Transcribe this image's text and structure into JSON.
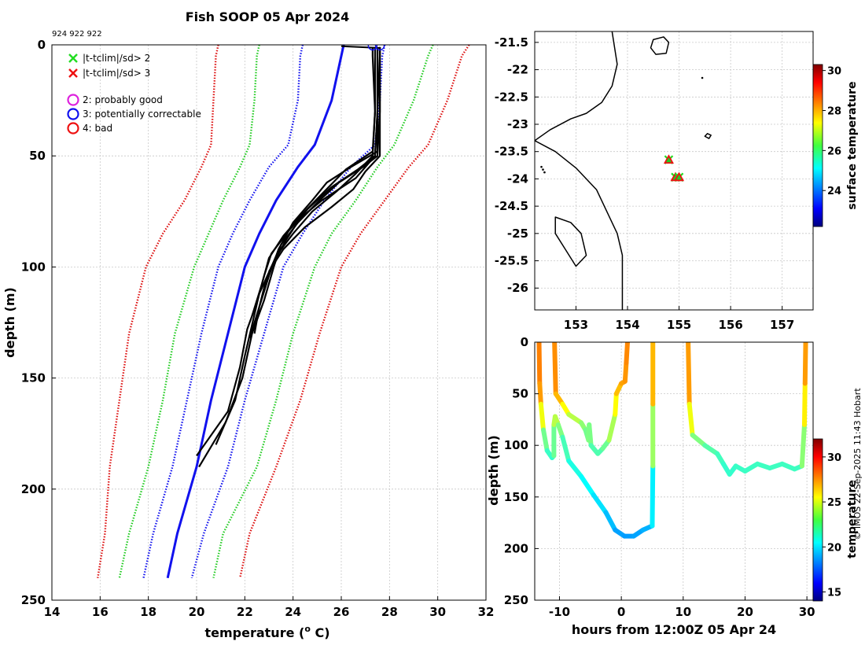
{
  "chart_data": [
    {
      "type": "line",
      "panel": "profiles",
      "title": "Fish SOOP 05 Apr 2024",
      "subtitle": "924 922 922",
      "xlabel": "temperature (",
      "xlabel_sup": "o",
      "xlabel_tail": " C)",
      "ylabel": "depth (m)",
      "xlim": [
        14,
        32
      ],
      "ylim": [
        0,
        250
      ],
      "xticks": [
        14,
        16,
        18,
        20,
        22,
        24,
        26,
        28,
        30,
        32
      ],
      "yticks": [
        0,
        50,
        100,
        150,
        200,
        250
      ],
      "grid": true,
      "legend": [
        {
          "marker": "x",
          "color": "#22dd22",
          "label": "|t-tclim|/sd> 2"
        },
        {
          "marker": "x",
          "color": "#ee1111",
          "label": "|t-tclim|/sd> 3"
        },
        {
          "marker": "o",
          "color": "#dd22dd",
          "label": "2: probably good"
        },
        {
          "marker": "o",
          "color": "#1111ee",
          "label": "3: potentially correctable"
        },
        {
          "marker": "o",
          "color": "#ee1111",
          "label": "4: bad"
        }
      ],
      "depth": [
        0,
        5,
        25,
        45,
        55,
        70,
        85,
        100,
        130,
        160,
        190,
        220,
        240
      ],
      "series": [
        {
          "name": "climatology mean",
          "color": "#1111ee",
          "style": "solid",
          "values": [
            26.1,
            26.0,
            25.6,
            24.9,
            24.2,
            23.3,
            22.6,
            22.0,
            21.3,
            20.6,
            20.0,
            19.2,
            18.8
          ]
        },
        {
          "name": "clim -1sd",
          "color": "#1111ee",
          "style": "dotted",
          "values": [
            24.4,
            24.3,
            24.2,
            23.8,
            23.0,
            22.2,
            21.5,
            20.9,
            20.2,
            19.6,
            19.0,
            18.2,
            17.8
          ]
        },
        {
          "name": "clim +1sd",
          "color": "#1111ee",
          "style": "dotted",
          "values": [
            27.8,
            27.7,
            27.6,
            27.4,
            26.4,
            25.3,
            24.4,
            23.6,
            22.8,
            22.0,
            21.3,
            20.3,
            19.8
          ]
        },
        {
          "name": "clim -2sd",
          "color": "#22cc22",
          "style": "dotted",
          "values": [
            22.6,
            22.5,
            22.4,
            22.2,
            21.8,
            21.1,
            20.5,
            19.9,
            19.1,
            18.6,
            18.0,
            17.2,
            16.8
          ]
        },
        {
          "name": "clim +2sd",
          "color": "#22cc22",
          "style": "dotted",
          "values": [
            29.8,
            29.6,
            29.0,
            28.2,
            27.5,
            26.6,
            25.6,
            24.9,
            24.0,
            23.3,
            22.5,
            21.1,
            20.7
          ]
        },
        {
          "name": "clim -3sd",
          "color": "#dd1111",
          "style": "dotted",
          "values": [
            20.9,
            20.8,
            20.7,
            20.6,
            20.2,
            19.5,
            18.6,
            17.9,
            17.2,
            16.8,
            16.4,
            16.2,
            15.9
          ]
        },
        {
          "name": "clim +3sd",
          "color": "#dd1111",
          "style": "dotted",
          "values": [
            31.3,
            31.0,
            30.4,
            29.6,
            28.8,
            27.8,
            26.8,
            26.0,
            25.1,
            24.3,
            23.3,
            22.2,
            21.8
          ]
        }
      ],
      "observed_profiles": [
        {
          "depth": [
            1,
            5,
            30,
            50,
            55,
            62,
            70,
            80,
            90,
            100,
            115,
            130,
            150,
            170,
            190
          ],
          "values": [
            27.6,
            27.6,
            27.6,
            27.5,
            26.9,
            25.9,
            25.1,
            24.2,
            23.5,
            23.2,
            22.8,
            22.3,
            21.9,
            21.2,
            20.1
          ]
        },
        {
          "depth": [
            1,
            5,
            30,
            50,
            58,
            66,
            75,
            85,
            95,
            105,
            118,
            130
          ],
          "values": [
            27.4,
            27.4,
            27.4,
            27.3,
            26.6,
            25.8,
            24.8,
            24.0,
            23.3,
            22.9,
            22.6,
            22.4
          ]
        },
        {
          "depth": [
            1,
            5,
            30,
            50,
            56,
            64,
            74,
            84,
            94,
            104,
            116,
            128,
            145,
            165,
            185
          ],
          "values": [
            27.5,
            27.5,
            27.5,
            27.4,
            26.7,
            25.6,
            24.6,
            23.8,
            23.1,
            22.8,
            22.5,
            22.1,
            21.8,
            21.3,
            20.0
          ]
        },
        {
          "depth": [
            1,
            5,
            30,
            48,
            55,
            62,
            70,
            80,
            92,
            104,
            118,
            132
          ],
          "values": [
            27.6,
            27.6,
            27.5,
            27.5,
            26.4,
            25.4,
            24.8,
            24.0,
            23.4,
            23.0,
            22.6,
            22.2
          ]
        },
        {
          "depth": [
            1,
            5,
            30,
            48,
            56,
            66,
            76,
            86,
            96,
            108,
            122
          ],
          "values": [
            27.3,
            27.3,
            27.4,
            27.3,
            26.2,
            25.3,
            24.4,
            23.6,
            23.0,
            22.7,
            22.3
          ]
        },
        {
          "depth": [
            1,
            5,
            30,
            50,
            60,
            70,
            78,
            88,
            100,
            112,
            126,
            140,
            160,
            180
          ],
          "values": [
            27.5,
            27.5,
            27.5,
            27.4,
            26.6,
            25.2,
            24.3,
            23.7,
            23.1,
            22.6,
            22.3,
            22.0,
            21.6,
            20.8
          ]
        },
        {
          "depth": [
            1,
            5,
            30,
            50,
            57,
            65,
            73,
            82,
            92,
            102
          ],
          "values": [
            27.6,
            27.6,
            27.6,
            27.6,
            27.0,
            26.5,
            25.6,
            24.5,
            23.6,
            23.0
          ]
        }
      ],
      "qc_markers": [
        {
          "symbol": "o",
          "color": "#1111ee",
          "temp": 27.3,
          "depth": 0
        },
        {
          "symbol": "o",
          "color": "#1111ee",
          "temp": 27.6,
          "depth": 0
        }
      ]
    },
    {
      "type": "scatter",
      "panel": "map",
      "xlim": [
        152.2,
        157.6
      ],
      "ylim": [
        -26.4,
        -21.3
      ],
      "xticks": [
        153,
        154,
        155,
        156,
        157
      ],
      "yticks": [
        -21.5,
        -22,
        -22.5,
        -23,
        -23.5,
        -24,
        -24.5,
        -25,
        -25.5,
        -26
      ],
      "grid": true,
      "colorbar": {
        "label": "surface temperature",
        "range": [
          22.2,
          30.3
        ],
        "ticks": [
          24,
          26,
          28,
          30
        ]
      },
      "points": [
        {
          "lon": 154.8,
          "lat": -23.65
        },
        {
          "lon": 154.93,
          "lat": -23.97
        },
        {
          "lon": 155.0,
          "lat": -23.97
        }
      ],
      "coastline": [
        [
          152.2,
          -23.3
        ],
        [
          152.5,
          -23.1
        ],
        [
          152.9,
          -22.9
        ],
        [
          153.2,
          -22.8
        ],
        [
          153.5,
          -22.6
        ],
        [
          153.7,
          -22.3
        ],
        [
          153.8,
          -21.9
        ],
        [
          153.7,
          -21.3
        ]
      ],
      "coastline2": [
        [
          152.2,
          -23.3
        ],
        [
          152.6,
          -23.5
        ],
        [
          153.0,
          -23.8
        ],
        [
          153.4,
          -24.2
        ],
        [
          153.6,
          -24.6
        ],
        [
          153.8,
          -25.0
        ],
        [
          153.9,
          -25.4
        ],
        [
          153.9,
          -25.8
        ],
        [
          153.9,
          -26.4
        ]
      ],
      "islands": [
        [
          [
            154.45,
            -21.6
          ],
          [
            154.5,
            -21.45
          ],
          [
            154.7,
            -21.4
          ],
          [
            154.8,
            -21.5
          ],
          [
            154.75,
            -21.7
          ],
          [
            154.55,
            -21.72
          ],
          [
            154.45,
            -21.6
          ]
        ],
        [
          [
            155.5,
            -23.22
          ],
          [
            155.55,
            -23.17
          ],
          [
            155.62,
            -23.2
          ],
          [
            155.58,
            -23.26
          ],
          [
            155.5,
            -23.22
          ]
        ],
        [
          [
            152.6,
            -24.7
          ],
          [
            152.9,
            -24.8
          ],
          [
            153.1,
            -25.0
          ],
          [
            153.2,
            -25.4
          ],
          [
            153.0,
            -25.6
          ],
          [
            152.8,
            -25.3
          ],
          [
            152.6,
            -25.0
          ]
        ]
      ]
    },
    {
      "type": "line",
      "panel": "depth_time",
      "xlabel": "hours from 12:00Z 05 Apr 24",
      "ylabel": "depth (m)",
      "xlim": [
        -14,
        31
      ],
      "ylim": [
        0,
        250
      ],
      "xticks": [
        -10,
        0,
        10,
        20,
        30
      ],
      "yticks": [
        0,
        50,
        100,
        150,
        200,
        250
      ],
      "colorbar": {
        "label": "temperature",
        "range": [
          14,
          32
        ],
        "ticks": [
          15,
          20,
          25,
          30
        ]
      },
      "series": [
        {
          "name": "track 1",
          "points": [
            [
              -13.3,
              0,
              27.5
            ],
            [
              -13.2,
              40,
              27.5
            ],
            [
              -13.0,
              60,
              26.5
            ],
            [
              -12.6,
              85,
              23.5
            ],
            [
              -12.0,
              105,
              22.0
            ],
            [
              -11.2,
              112,
              21.5
            ],
            [
              -10.9,
              110,
              21.8
            ],
            [
              -10.9,
              80,
              23.5
            ],
            [
              -10.7,
              72,
              24.5
            ],
            [
              -10.2,
              80,
              23.5
            ],
            [
              -9.5,
              92,
              22.5
            ],
            [
              -8.5,
              115,
              21.5
            ],
            [
              -6.5,
              130,
              21.0
            ],
            [
              -4.5,
              148,
              20.5
            ],
            [
              -2.5,
              165,
              20.0
            ],
            [
              -1,
              182,
              19.2
            ],
            [
              0.5,
              188,
              19.0
            ],
            [
              2,
              188,
              19.0
            ],
            [
              3.5,
              182,
              19.3
            ],
            [
              5,
              178,
              19.5
            ],
            [
              5.1,
              120,
              21.5
            ],
            [
              5.1,
              60,
              25.5
            ],
            [
              5.1,
              0,
              27.5
            ]
          ]
        },
        {
          "name": "track 2",
          "points": [
            [
              -10.8,
              0,
              27.5
            ],
            [
              -10.6,
              50,
              27.0
            ],
            [
              -9.5,
              60,
              26.0
            ],
            [
              -8.5,
              70,
              24.5
            ],
            [
              -6.5,
              78,
              23.5
            ],
            [
              -5.8,
              85,
              23.0
            ],
            [
              -5.3,
              95,
              22.5
            ],
            [
              -5.2,
              80,
              23.5
            ],
            [
              -4.9,
              100,
              22.3
            ],
            [
              -3.8,
              108,
              22.0
            ],
            [
              -3.0,
              103,
              22.3
            ],
            [
              -2.0,
              95,
              23.0
            ],
            [
              -1.0,
              70,
              24.5
            ],
            [
              -0.8,
              50,
              26.0
            ],
            [
              0,
              40,
              26.8
            ],
            [
              0.6,
              38,
              27.0
            ],
            [
              0.8,
              20,
              27.2
            ],
            [
              1.0,
              0,
              27.5
            ]
          ]
        },
        {
          "name": "track 3",
          "points": [
            [
              10.8,
              0,
              27.5
            ],
            [
              11.0,
              60,
              26.5
            ],
            [
              11.5,
              90,
              23.5
            ],
            [
              13.5,
              100,
              22.5
            ],
            [
              15.5,
              108,
              22.0
            ],
            [
              16.5,
              118,
              21.8
            ],
            [
              17.5,
              128,
              21.5
            ],
            [
              18.5,
              120,
              21.8
            ],
            [
              20,
              125,
              21.7
            ],
            [
              22,
              118,
              21.9
            ],
            [
              24,
              122,
              21.8
            ],
            [
              26,
              118,
              21.9
            ],
            [
              28,
              123,
              21.8
            ],
            [
              29.2,
              120,
              21.9
            ],
            [
              29.6,
              80,
              24.5
            ],
            [
              29.7,
              40,
              26.5
            ],
            [
              29.8,
              0,
              27.5
            ]
          ]
        }
      ]
    }
  ],
  "watermark": "© IMOS 22-Sep-2025 11:43 Hobart"
}
